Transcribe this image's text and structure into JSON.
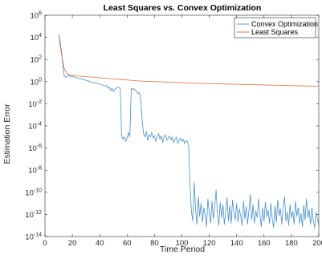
{
  "chart_data": {
    "type": "line",
    "title": "Least Squares vs. Convex Optimization",
    "xlabel": "Time Period",
    "ylabel": "Estimation Error",
    "xlim": [
      0,
      200
    ],
    "ylim_log10": [
      -14,
      6
    ],
    "y_scale": "log",
    "grid": false,
    "legend_position": "top-right",
    "x_ticks": [
      "0",
      "20",
      "40",
      "60",
      "80",
      "100",
      "120",
      "140",
      "160",
      "180",
      "200"
    ],
    "y_tick_exponents": [
      "6",
      "4",
      "2",
      "0",
      "-2",
      "-4",
      "-6",
      "-8",
      "-10",
      "-12",
      "-14"
    ],
    "series": [
      {
        "name": "Convex Optimization",
        "color": "#4a90c8",
        "points_log10": [
          [
            10,
            4.3
          ],
          [
            11,
            3.7
          ],
          [
            12,
            2.8
          ],
          [
            13,
            1.6
          ],
          [
            14,
            0.55
          ],
          [
            15,
            0.4
          ],
          [
            16,
            0.42
          ],
          [
            17,
            0.6
          ],
          [
            18,
            0.5
          ],
          [
            20,
            0.45
          ],
          [
            22,
            0.4
          ],
          [
            24,
            0.32
          ],
          [
            26,
            0.25
          ],
          [
            28,
            0.18
          ],
          [
            30,
            0.12
          ],
          [
            32,
            0.05
          ],
          [
            34,
            -0.05
          ],
          [
            36,
            -0.1
          ],
          [
            38,
            -0.15
          ],
          [
            40,
            -0.2
          ],
          [
            42,
            -0.3
          ],
          [
            44,
            -0.4
          ],
          [
            45,
            -0.35
          ],
          [
            46,
            -0.6
          ],
          [
            47,
            -0.5
          ],
          [
            48,
            -0.8
          ],
          [
            49,
            -0.6
          ],
          [
            50,
            -0.9
          ],
          [
            51,
            -0.7
          ],
          [
            52,
            -0.6
          ],
          [
            53,
            -0.5
          ],
          [
            54,
            -0.55
          ],
          [
            55,
            -0.6
          ],
          [
            56,
            -4.9
          ],
          [
            57,
            -5.2
          ],
          [
            58,
            -5.0
          ],
          [
            59,
            -5.4
          ],
          [
            60,
            -5.1
          ],
          [
            61,
            -4.6
          ],
          [
            62,
            -5.0
          ],
          [
            63,
            -0.6
          ],
          [
            64,
            -0.7
          ],
          [
            65,
            -0.65
          ],
          [
            66,
            -0.8
          ],
          [
            67,
            -0.9
          ],
          [
            68,
            -1.1
          ],
          [
            69,
            -1.0
          ],
          [
            70,
            -1.6
          ],
          [
            71,
            -3.5
          ],
          [
            72,
            -4.7
          ],
          [
            73,
            -5.0
          ],
          [
            74,
            -4.5
          ],
          [
            75,
            -5.3
          ],
          [
            76,
            -4.8
          ],
          [
            77,
            -5.0
          ],
          [
            78,
            -4.6
          ],
          [
            79,
            -5.1
          ],
          [
            80,
            -4.9
          ],
          [
            81,
            -5.4
          ],
          [
            82,
            -5.0
          ],
          [
            83,
            -4.7
          ],
          [
            84,
            -5.2
          ],
          [
            85,
            -4.9
          ],
          [
            86,
            -5.5
          ],
          [
            87,
            -5.0
          ],
          [
            88,
            -4.8
          ],
          [
            89,
            -5.3
          ],
          [
            90,
            -5.1
          ],
          [
            91,
            -4.9
          ],
          [
            92,
            -5.3
          ],
          [
            93,
            -5.0
          ],
          [
            94,
            -5.5
          ],
          [
            95,
            -5.2
          ],
          [
            96,
            -5.0
          ],
          [
            97,
            -5.6
          ],
          [
            98,
            -5.3
          ],
          [
            99,
            -5.1
          ],
          [
            100,
            -5.4
          ],
          [
            101,
            -5.2
          ],
          [
            102,
            -5.6
          ],
          [
            103,
            -5.3
          ],
          [
            104,
            -5.4
          ],
          [
            105,
            -5.8
          ],
          [
            106,
            -9.5
          ],
          [
            107,
            -11.8
          ],
          [
            108,
            -12.6
          ],
          [
            109,
            -9.1
          ],
          [
            110,
            -11.5
          ],
          [
            111,
            -12.9
          ],
          [
            112,
            -10.4
          ],
          [
            113,
            -12.2
          ],
          [
            114,
            -11.0
          ],
          [
            115,
            -12.7
          ],
          [
            116,
            -11.4
          ],
          [
            117,
            -12.1
          ],
          [
            118,
            -13.1
          ],
          [
            119,
            -10.6
          ],
          [
            120,
            -11.9
          ],
          [
            121,
            -12.8
          ],
          [
            122,
            -10.8
          ],
          [
            123,
            -12.4
          ],
          [
            124,
            -11.3
          ],
          [
            125,
            -9.8
          ],
          [
            126,
            -12.0
          ],
          [
            127,
            -13.0
          ],
          [
            128,
            -10.9
          ],
          [
            129,
            -12.3
          ],
          [
            130,
            -11.1
          ],
          [
            131,
            -12.9
          ],
          [
            132,
            -11.7
          ],
          [
            133,
            -10.5
          ],
          [
            134,
            -12.6
          ],
          [
            135,
            -11.2
          ],
          [
            136,
            -12.8
          ],
          [
            137,
            -10.7
          ],
          [
            138,
            -11.9
          ],
          [
            139,
            -12.5
          ],
          [
            140,
            -11.0
          ],
          [
            141,
            -12.7
          ],
          [
            142,
            -11.5
          ],
          [
            143,
            -12.2
          ],
          [
            144,
            -13.0
          ],
          [
            145,
            -10.8
          ],
          [
            146,
            -12.4
          ],
          [
            147,
            -11.3
          ],
          [
            148,
            -12.9
          ],
          [
            149,
            -11.6
          ],
          [
            150,
            -10.2
          ],
          [
            151,
            -12.5
          ],
          [
            152,
            -11.1
          ],
          [
            153,
            -12.8
          ],
          [
            154,
            -11.7
          ],
          [
            155,
            -12.3
          ],
          [
            156,
            -10.6
          ],
          [
            157,
            -12.0
          ],
          [
            158,
            -13.1
          ],
          [
            159,
            -11.4
          ],
          [
            160,
            -12.6
          ],
          [
            161,
            -10.9
          ],
          [
            162,
            -12.2
          ],
          [
            163,
            -11.6
          ],
          [
            164,
            -12.8
          ],
          [
            165,
            -11.0
          ],
          [
            166,
            -12.4
          ],
          [
            167,
            -13.2
          ],
          [
            168,
            -11.2
          ],
          [
            169,
            -12.7
          ],
          [
            170,
            -10.7
          ],
          [
            171,
            -12.1
          ],
          [
            172,
            -11.5
          ],
          [
            173,
            -12.9
          ],
          [
            174,
            -11.3
          ],
          [
            175,
            -10.4
          ],
          [
            176,
            -12.6
          ],
          [
            177,
            -11.8
          ],
          [
            178,
            -13.0
          ],
          [
            179,
            -11.1
          ],
          [
            180,
            -12.3
          ],
          [
            181,
            -11.7
          ],
          [
            182,
            -12.9
          ],
          [
            183,
            -10.8
          ],
          [
            184,
            -12.2
          ],
          [
            185,
            -11.4
          ],
          [
            186,
            -12.8
          ],
          [
            187,
            -11.9
          ],
          [
            188,
            -13.1
          ],
          [
            189,
            -11.2
          ],
          [
            190,
            -12.5
          ],
          [
            191,
            -10.6
          ],
          [
            192,
            -12.3
          ],
          [
            193,
            -11.6
          ],
          [
            194,
            -12.9
          ],
          [
            195,
            -11.4
          ],
          [
            196,
            -12.6
          ],
          [
            197,
            -13.2
          ],
          [
            198,
            -11.8
          ],
          [
            199,
            -12.4
          ],
          [
            200,
            -12.9
          ]
        ]
      },
      {
        "name": "Least Squares",
        "color": "#e36b3f",
        "points_log10": [
          [
            10,
            4.3
          ],
          [
            12,
            2.5
          ],
          [
            14,
            1.2
          ],
          [
            16,
            0.75
          ],
          [
            18,
            0.6
          ],
          [
            20,
            0.55
          ],
          [
            25,
            0.5
          ],
          [
            30,
            0.45
          ],
          [
            35,
            0.4
          ],
          [
            40,
            0.35
          ],
          [
            45,
            0.3
          ],
          [
            50,
            0.25
          ],
          [
            55,
            0.2
          ],
          [
            60,
            0.15
          ],
          [
            70,
            0.05
          ],
          [
            80,
            0.0
          ],
          [
            90,
            -0.05
          ],
          [
            100,
            -0.1
          ],
          [
            110,
            -0.15
          ],
          [
            120,
            -0.18
          ],
          [
            130,
            -0.21
          ],
          [
            140,
            -0.24
          ],
          [
            150,
            -0.27
          ],
          [
            160,
            -0.3
          ],
          [
            170,
            -0.33
          ],
          [
            180,
            -0.36
          ],
          [
            190,
            -0.39
          ],
          [
            200,
            -0.42
          ]
        ]
      }
    ]
  }
}
